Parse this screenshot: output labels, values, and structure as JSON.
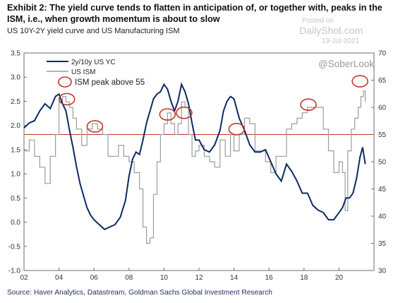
{
  "page": {
    "title": "Exhibit 2: The yield curve tends to flatten in anticipation of, or together with, peaks in the ISM, i.e., when growth momentum is about to slow",
    "subtitle": "US 10Y-2Y yield curve and US Manufacturing ISM",
    "source": "Source: Haver Analytics, Datastream, Goldman Sachs Global Investment Research",
    "watermark": {
      "posted": "Posted on",
      "site": "DailyShot.com",
      "date": "19-Jul-2021"
    },
    "handle": "@SoberLook"
  },
  "chart_data": {
    "type": "line",
    "title": "",
    "xlabel": "",
    "ylabel_left": "",
    "ylabel_right": "",
    "xlim": [
      2002,
      2022
    ],
    "ylim_left": [
      -1.0,
      3.5
    ],
    "ylim_right": [
      30,
      70
    ],
    "x_ticks": [
      2002,
      2004,
      2006,
      2008,
      2010,
      2012,
      2014,
      2016,
      2018,
      2020
    ],
    "x_tick_labels": [
      "02",
      "04",
      "06",
      "08",
      "10",
      "12",
      "14",
      "16",
      "18",
      "20"
    ],
    "y_left_ticks": [
      -1.0,
      -0.5,
      0.0,
      0.5,
      1.0,
      1.5,
      2.0,
      2.5,
      3.0,
      3.5
    ],
    "y_left_tick_labels": [
      "-1.0",
      "-0.5",
      "0.0",
      "0.5",
      "1.0",
      "1.5",
      "2.0",
      "2.5",
      "3.0",
      "3.5"
    ],
    "y_right_ticks": [
      30,
      35,
      40,
      45,
      50,
      55,
      60,
      65,
      70
    ],
    "y_right_tick_labels": [
      "30",
      "35",
      "40",
      "45",
      "50",
      "55",
      "60",
      "65",
      "70"
    ],
    "grid": false,
    "legend": {
      "placement": "top-left",
      "entries": [
        "2y/10y US YC",
        "US ISM",
        "ISM peak above 55"
      ]
    },
    "reference_line": {
      "axis": "right",
      "value": 55,
      "color": "#c0392b"
    },
    "series": [
      {
        "name": "2y/10y US YC",
        "axis": "left",
        "color": "#0d2a66",
        "x": [
          2002.0,
          2002.3,
          2002.6,
          2002.9,
          2003.2,
          2003.5,
          2003.8,
          2004.0,
          2004.2,
          2004.4,
          2004.6,
          2004.8,
          2005.0,
          2005.2,
          2005.4,
          2005.6,
          2005.8,
          2006.0,
          2006.3,
          2006.6,
          2006.9,
          2007.2,
          2007.5,
          2007.8,
          2008.0,
          2008.2,
          2008.4,
          2008.6,
          2008.8,
          2009.0,
          2009.2,
          2009.4,
          2009.6,
          2009.8,
          2010.0,
          2010.2,
          2010.4,
          2010.6,
          2010.8,
          2011.0,
          2011.2,
          2011.4,
          2011.6,
          2011.8,
          2012.0,
          2012.3,
          2012.6,
          2012.9,
          2013.2,
          2013.4,
          2013.6,
          2013.8,
          2014.0,
          2014.3,
          2014.6,
          2014.9,
          2015.2,
          2015.5,
          2015.8,
          2016.1,
          2016.4,
          2016.7,
          2017.0,
          2017.3,
          2017.6,
          2017.9,
          2018.2,
          2018.5,
          2018.8,
          2019.1,
          2019.4,
          2019.7,
          2020.0,
          2020.2,
          2020.4,
          2020.6,
          2020.8,
          2021.0,
          2021.2,
          2021.35,
          2021.5
        ],
        "values": [
          1.95,
          2.05,
          2.1,
          2.3,
          2.45,
          2.35,
          2.6,
          2.65,
          2.45,
          2.3,
          1.9,
          1.55,
          1.15,
          0.8,
          0.55,
          0.3,
          0.15,
          0.05,
          -0.05,
          -0.15,
          -0.1,
          -0.05,
          0.1,
          0.45,
          0.95,
          1.3,
          1.45,
          1.4,
          1.7,
          2.05,
          2.3,
          2.55,
          2.65,
          2.7,
          2.85,
          2.75,
          2.5,
          2.3,
          2.5,
          2.85,
          2.7,
          2.45,
          2.05,
          1.7,
          1.7,
          1.5,
          1.45,
          1.6,
          1.9,
          2.3,
          2.5,
          2.6,
          2.55,
          2.15,
          1.9,
          1.6,
          1.45,
          1.45,
          1.5,
          1.25,
          1.0,
          0.85,
          1.2,
          1.05,
          0.85,
          0.6,
          0.6,
          0.35,
          0.25,
          0.2,
          0.05,
          0.05,
          0.2,
          0.3,
          0.5,
          0.5,
          0.6,
          0.9,
          1.35,
          1.55,
          1.2
        ]
      },
      {
        "name": "US ISM",
        "axis": "right",
        "color": "#9c9c9c",
        "x": [
          2002.0,
          2002.3,
          2002.6,
          2002.9,
          2003.2,
          2003.5,
          2003.8,
          2004.0,
          2004.2,
          2004.4,
          2004.6,
          2004.8,
          2005.0,
          2005.3,
          2005.6,
          2005.9,
          2006.2,
          2006.5,
          2006.8,
          2007.1,
          2007.4,
          2007.7,
          2008.0,
          2008.3,
          2008.6,
          2008.8,
          2009.0,
          2009.2,
          2009.4,
          2009.6,
          2009.8,
          2010.0,
          2010.2,
          2010.4,
          2010.6,
          2010.8,
          2011.0,
          2011.2,
          2011.4,
          2011.6,
          2011.8,
          2012.0,
          2012.3,
          2012.6,
          2012.9,
          2013.2,
          2013.5,
          2013.8,
          2014.0,
          2014.3,
          2014.6,
          2014.9,
          2015.2,
          2015.5,
          2015.8,
          2016.1,
          2016.4,
          2016.7,
          2017.0,
          2017.3,
          2017.6,
          2017.9,
          2018.2,
          2018.5,
          2018.8,
          2019.1,
          2019.4,
          2019.7,
          2020.0,
          2020.2,
          2020.35,
          2020.5,
          2020.7,
          2020.9,
          2021.1,
          2021.25,
          2021.4,
          2021.5
        ],
        "values": [
          52,
          54,
          51,
          49,
          46,
          51,
          55,
          61,
          62,
          61,
          60,
          58,
          56,
          53,
          56,
          57,
          56,
          55,
          51,
          51,
          53,
          51,
          50,
          48,
          45,
          38,
          35,
          36,
          44,
          50,
          55,
          57,
          59,
          57,
          55,
          57,
          61,
          60,
          55,
          51,
          52,
          53,
          51,
          50,
          49,
          54,
          51,
          55,
          52,
          55,
          58,
          57,
          52,
          52,
          50,
          48,
          51,
          51,
          56,
          57,
          58,
          59,
          60,
          60,
          60,
          56,
          52,
          48,
          50,
          48,
          41,
          52,
          56,
          58,
          60,
          62,
          63,
          61
        ]
      }
    ],
    "annotations": [
      {
        "label": "ISM peak above 55",
        "x": 2004.45,
        "y_right": 61.5
      },
      {
        "label": "ISM peak above 55",
        "x": 2006.05,
        "y_right": 56.5
      },
      {
        "label": "ISM peak above 55",
        "x": 2010.2,
        "y_right": 58.7
      },
      {
        "label": "ISM peak above 55",
        "x": 2011.15,
        "y_right": 59.0
      },
      {
        "label": "ISM peak above 55",
        "x": 2014.15,
        "y_right": 56.0
      },
      {
        "label": "ISM peak above 55",
        "x": 2018.25,
        "y_right": 60.5
      },
      {
        "label": "ISM peak above 55",
        "x": 2021.2,
        "y_right": 64.8
      }
    ]
  }
}
